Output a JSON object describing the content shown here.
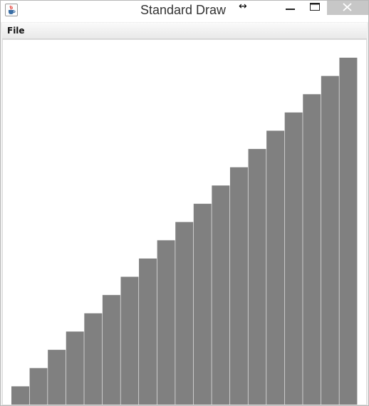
{
  "window": {
    "title": "Standard Draw",
    "icon": "java-cup-icon",
    "controls": [
      "minimize-icon",
      "maximize-icon",
      "close-icon"
    ]
  },
  "menubar": {
    "items": [
      {
        "label": "File"
      }
    ]
  },
  "chart_data": {
    "type": "bar",
    "values": [
      1,
      2,
      3,
      4,
      5,
      6,
      7,
      8,
      9,
      10,
      11,
      12,
      13,
      14,
      15,
      16,
      17,
      18,
      19
    ],
    "ylim": [
      0,
      19
    ],
    "bar_color": "#808080",
    "grid": false
  },
  "colors": {
    "bar": "#808080",
    "close_button": "#c7c7c7",
    "canvas": "#ffffff"
  }
}
